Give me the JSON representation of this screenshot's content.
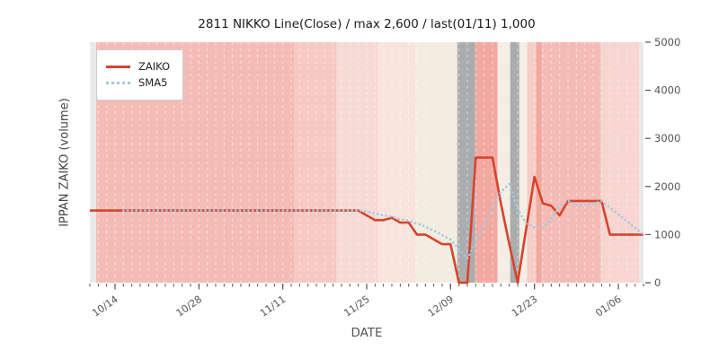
{
  "title": "2811 NIKKO Line(Close) / max 2,600 / last(01/11) 1,000",
  "axes": {
    "x_label": "DATE",
    "y_label": "IPPAN ZAIKO (volume)",
    "y_right_ticks": {
      "values": [
        0,
        1000,
        2000,
        3000,
        4000,
        5000
      ],
      "labels": [
        "0",
        "1000",
        "2000",
        "3000",
        "4000",
        "5000"
      ]
    },
    "x_major_ticks": [
      {
        "pos": 3,
        "label": "10/14"
      },
      {
        "pos": 13,
        "label": "10/28"
      },
      {
        "pos": 23,
        "label": "11/11"
      },
      {
        "pos": 33,
        "label": "11/25"
      },
      {
        "pos": 43,
        "label": "12/09"
      },
      {
        "pos": 53,
        "label": "12/23"
      },
      {
        "pos": 63,
        "label": "01/06"
      }
    ]
  },
  "legend": {
    "items": [
      {
        "label": "ZAIKO",
        "style": "solid",
        "color": "#d7432d"
      },
      {
        "label": "SMA5",
        "style": "dotted",
        "color": "#a5c8e0"
      }
    ]
  },
  "colors": {
    "zaiko_line": "#d7432d",
    "sma5_line": "#a5c8e0",
    "tick": "#555555",
    "tick_label": "#555555",
    "title_text": "#1a1a1a",
    "grid_dash": "rgba(255,255,255,0.55)",
    "band_gray": "#abacae",
    "band_salmon": "#f4bcb6",
    "band_cream": "#f2ece1"
  },
  "chart_data": {
    "type": "line",
    "title": "2811 NIKKO Line(Close) / max 2,600 / last(01/11) 1,000",
    "xlabel": "DATE",
    "ylabel": "IPPAN ZAIKO (volume)",
    "x_unit": "trading days from 10/11 to 01/11 (x ticks every 14 calendar days)",
    "ylim": [
      0,
      5000
    ],
    "x_index_max": 66,
    "sma_window": 5,
    "max_value": 2600,
    "last_value": 1000,
    "last_date": "01/11",
    "series": [
      {
        "name": "ZAIKO",
        "line": "solid",
        "color": "#d7432d",
        "start_index": 0,
        "values": [
          1500,
          1500,
          1500,
          1500,
          1500,
          1500,
          1500,
          1500,
          1500,
          1500,
          1500,
          1500,
          1500,
          1500,
          1500,
          1500,
          1500,
          1500,
          1500,
          1500,
          1500,
          1500,
          1500,
          1500,
          1500,
          1500,
          1500,
          1500,
          1500,
          1500,
          1500,
          1500,
          1500,
          1400,
          1300,
          1300,
          1350,
          1250,
          1250,
          1000,
          1000,
          900,
          800,
          800,
          0,
          0,
          2600,
          2600,
          2600,
          1650,
          800,
          0,
          1100,
          2200,
          1650,
          1600,
          1400,
          1700,
          1700,
          1700,
          1700,
          1700,
          1000,
          1000,
          1000,
          1000,
          1000
        ]
      },
      {
        "name": "SMA5",
        "line": "dotted",
        "color": "#a5c8e0",
        "start_index": 4,
        "values": [
          1500,
          1500,
          1500,
          1500,
          1500,
          1500,
          1500,
          1500,
          1500,
          1500,
          1500,
          1500,
          1500,
          1500,
          1500,
          1500,
          1500,
          1500,
          1500,
          1500,
          1500,
          1500,
          1500,
          1500,
          1500,
          1500,
          1500,
          1500,
          1500,
          1480,
          1440,
          1400,
          1370,
          1320,
          1290,
          1230,
          1170,
          1080,
          990,
          900,
          700,
          500,
          840,
          1200,
          1560,
          1890,
          2050,
          1530,
          1230,
          1150,
          1150,
          1310,
          1590,
          1710,
          1610,
          1620,
          1640,
          1700,
          1560,
          1420,
          1280,
          1140,
          1000
        ]
      }
    ],
    "background_bands": [
      {
        "start": 0,
        "end": 0.75,
        "color": "#e9e9e9"
      },
      {
        "start": 0.75,
        "end": 24.4,
        "color": "#f4bcb6"
      },
      {
        "start": 24.4,
        "end": 29.4,
        "color": "#f6c9c2"
      },
      {
        "start": 29.4,
        "end": 34.4,
        "color": "#f8dad4"
      },
      {
        "start": 34.4,
        "end": 38.8,
        "color": "#f9e3dd"
      },
      {
        "start": 38.8,
        "end": 43.8,
        "color": "#f2ece1"
      },
      {
        "start": 43.8,
        "end": 45.95,
        "color": "#abacae"
      },
      {
        "start": 45.95,
        "end": 48.6,
        "color": "#f2a9a1"
      },
      {
        "start": 48.6,
        "end": 50.1,
        "color": "#f3ede3"
      },
      {
        "start": 50.1,
        "end": 51.2,
        "color": "#abacae"
      },
      {
        "start": 51.2,
        "end": 52.1,
        "color": "#f4eee5"
      },
      {
        "start": 52.1,
        "end": 53.2,
        "color": "#f7cdc7"
      },
      {
        "start": 53.2,
        "end": 53.85,
        "color": "#f3a79e"
      },
      {
        "start": 53.85,
        "end": 60.9,
        "color": "#f4bcb6"
      },
      {
        "start": 60.9,
        "end": 65.5,
        "color": "#f7d5d0"
      },
      {
        "start": 65.5,
        "end": 66,
        "color": "#e9e9e9"
      }
    ]
  }
}
